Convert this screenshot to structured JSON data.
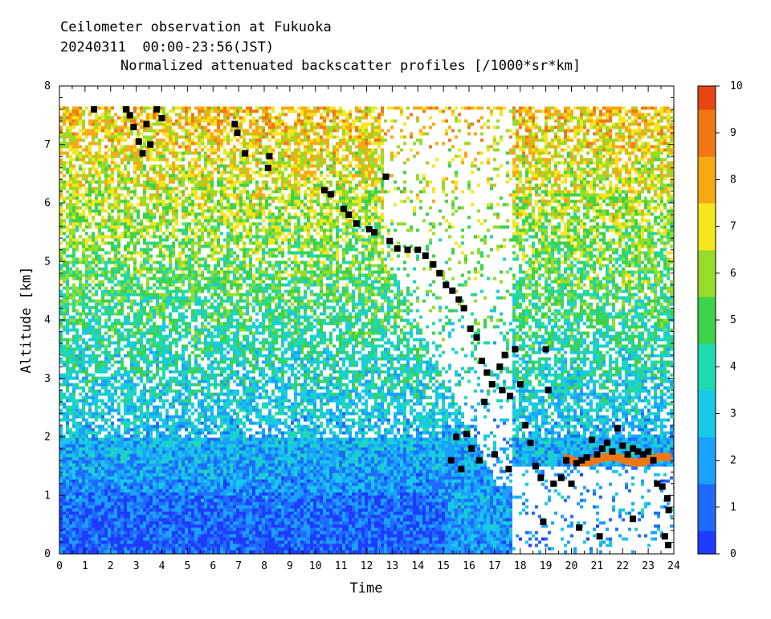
{
  "header": {
    "line1": "Ceilometer observation at Fukuoka",
    "line2": "20240311  00:00-23:56(JST)",
    "line3": "Normalized attenuated backscatter profiles [/1000*sr*km]"
  },
  "chart_data": {
    "type": "heatmap",
    "xlabel": "Time",
    "ylabel": "Altitude [km]",
    "xlim": [
      0,
      24
    ],
    "ylim": [
      0,
      8
    ],
    "x_ticks": [
      "0",
      "1",
      "2",
      "3",
      "4",
      "5",
      "6",
      "7",
      "8",
      "9",
      "10",
      "11",
      "12",
      "13",
      "14",
      "15",
      "16",
      "17",
      "18",
      "19",
      "20",
      "21",
      "22",
      "23",
      "24"
    ],
    "y_ticks": [
      "0",
      "1",
      "2",
      "3",
      "4",
      "5",
      "6",
      "7",
      "8"
    ],
    "colorbar": {
      "min": 0,
      "max": 10,
      "ticks": [
        "0",
        "1",
        "2",
        "3",
        "4",
        "5",
        "6",
        "7",
        "8",
        "9",
        "10"
      ],
      "colors": [
        "#1e3cff",
        "#1f6bff",
        "#1aa0ff",
        "#18c8e8",
        "#1fd9b0",
        "#3cd24a",
        "#96dc28",
        "#f5e61e",
        "#f5aa14",
        "#f07814",
        "#e64614"
      ]
    },
    "data_top_km": 7.65,
    "cloud_base_points": [
      {
        "x": 1.35,
        "y": 7.6
      },
      {
        "x": 2.6,
        "y": 7.6
      },
      {
        "x": 2.75,
        "y": 7.5
      },
      {
        "x": 2.9,
        "y": 7.3
      },
      {
        "x": 3.1,
        "y": 7.05
      },
      {
        "x": 3.25,
        "y": 6.85
      },
      {
        "x": 3.4,
        "y": 7.35
      },
      {
        "x": 3.55,
        "y": 7.0
      },
      {
        "x": 3.8,
        "y": 7.6
      },
      {
        "x": 4.0,
        "y": 7.45
      },
      {
        "x": 6.85,
        "y": 7.35
      },
      {
        "x": 6.95,
        "y": 7.2
      },
      {
        "x": 7.25,
        "y": 6.85
      },
      {
        "x": 8.2,
        "y": 6.8
      },
      {
        "x": 8.15,
        "y": 6.6
      },
      {
        "x": 10.35,
        "y": 6.22
      },
      {
        "x": 10.6,
        "y": 6.15
      },
      {
        "x": 11.1,
        "y": 5.9
      },
      {
        "x": 11.3,
        "y": 5.8
      },
      {
        "x": 11.6,
        "y": 5.65
      },
      {
        "x": 12.1,
        "y": 5.55
      },
      {
        "x": 12.3,
        "y": 5.5
      },
      {
        "x": 12.75,
        "y": 6.45
      },
      {
        "x": 12.9,
        "y": 5.35
      },
      {
        "x": 13.2,
        "y": 5.22
      },
      {
        "x": 13.6,
        "y": 5.2
      },
      {
        "x": 14.0,
        "y": 5.2
      },
      {
        "x": 14.3,
        "y": 5.1
      },
      {
        "x": 14.6,
        "y": 4.95
      },
      {
        "x": 14.85,
        "y": 4.8
      },
      {
        "x": 15.1,
        "y": 4.6
      },
      {
        "x": 15.35,
        "y": 4.5
      },
      {
        "x": 15.6,
        "y": 4.35
      },
      {
        "x": 15.8,
        "y": 4.2
      },
      {
        "x": 16.05,
        "y": 3.85
      },
      {
        "x": 16.3,
        "y": 3.7
      },
      {
        "x": 16.5,
        "y": 3.3
      },
      {
        "x": 16.7,
        "y": 3.1
      },
      {
        "x": 16.9,
        "y": 2.9
      },
      {
        "x": 17.2,
        "y": 3.2
      },
      {
        "x": 17.4,
        "y": 3.4
      },
      {
        "x": 17.6,
        "y": 2.7
      },
      {
        "x": 17.8,
        "y": 3.5
      },
      {
        "x": 18.0,
        "y": 2.9
      },
      {
        "x": 18.2,
        "y": 2.2
      },
      {
        "x": 18.4,
        "y": 1.9
      },
      {
        "x": 18.6,
        "y": 1.5
      },
      {
        "x": 18.8,
        "y": 1.3
      },
      {
        "x": 19.0,
        "y": 3.5
      },
      {
        "x": 19.1,
        "y": 2.8
      },
      {
        "x": 19.3,
        "y": 1.2
      },
      {
        "x": 15.3,
        "y": 1.6
      },
      {
        "x": 15.5,
        "y": 2.0
      },
      {
        "x": 15.7,
        "y": 1.45
      },
      {
        "x": 15.9,
        "y": 2.05
      },
      {
        "x": 16.1,
        "y": 1.8
      },
      {
        "x": 16.4,
        "y": 1.6
      },
      {
        "x": 16.6,
        "y": 2.6
      },
      {
        "x": 17.0,
        "y": 1.7
      },
      {
        "x": 17.3,
        "y": 2.8
      },
      {
        "x": 17.55,
        "y": 1.45
      },
      {
        "x": 19.6,
        "y": 1.3
      },
      {
        "x": 19.8,
        "y": 1.6
      },
      {
        "x": 20.0,
        "y": 1.2
      },
      {
        "x": 20.2,
        "y": 1.55
      },
      {
        "x": 20.4,
        "y": 1.6
      },
      {
        "x": 20.6,
        "y": 1.65
      },
      {
        "x": 20.8,
        "y": 1.95
      },
      {
        "x": 21.0,
        "y": 1.7
      },
      {
        "x": 21.2,
        "y": 1.8
      },
      {
        "x": 21.4,
        "y": 1.9
      },
      {
        "x": 21.6,
        "y": 1.75
      },
      {
        "x": 21.8,
        "y": 2.15
      },
      {
        "x": 22.0,
        "y": 1.85
      },
      {
        "x": 22.2,
        "y": 1.7
      },
      {
        "x": 22.4,
        "y": 1.8
      },
      {
        "x": 22.6,
        "y": 1.75
      },
      {
        "x": 22.8,
        "y": 1.7
      },
      {
        "x": 23.0,
        "y": 1.75
      },
      {
        "x": 23.2,
        "y": 1.6
      },
      {
        "x": 23.35,
        "y": 1.2
      },
      {
        "x": 23.55,
        "y": 1.15
      },
      {
        "x": 23.75,
        "y": 0.95
      },
      {
        "x": 23.8,
        "y": 0.75
      },
      {
        "x": 18.9,
        "y": 0.55
      },
      {
        "x": 20.3,
        "y": 0.45
      },
      {
        "x": 22.4,
        "y": 0.6
      },
      {
        "x": 23.65,
        "y": 0.3
      },
      {
        "x": 23.78,
        "y": 0.15
      },
      {
        "x": 21.1,
        "y": 0.3
      }
    ]
  }
}
